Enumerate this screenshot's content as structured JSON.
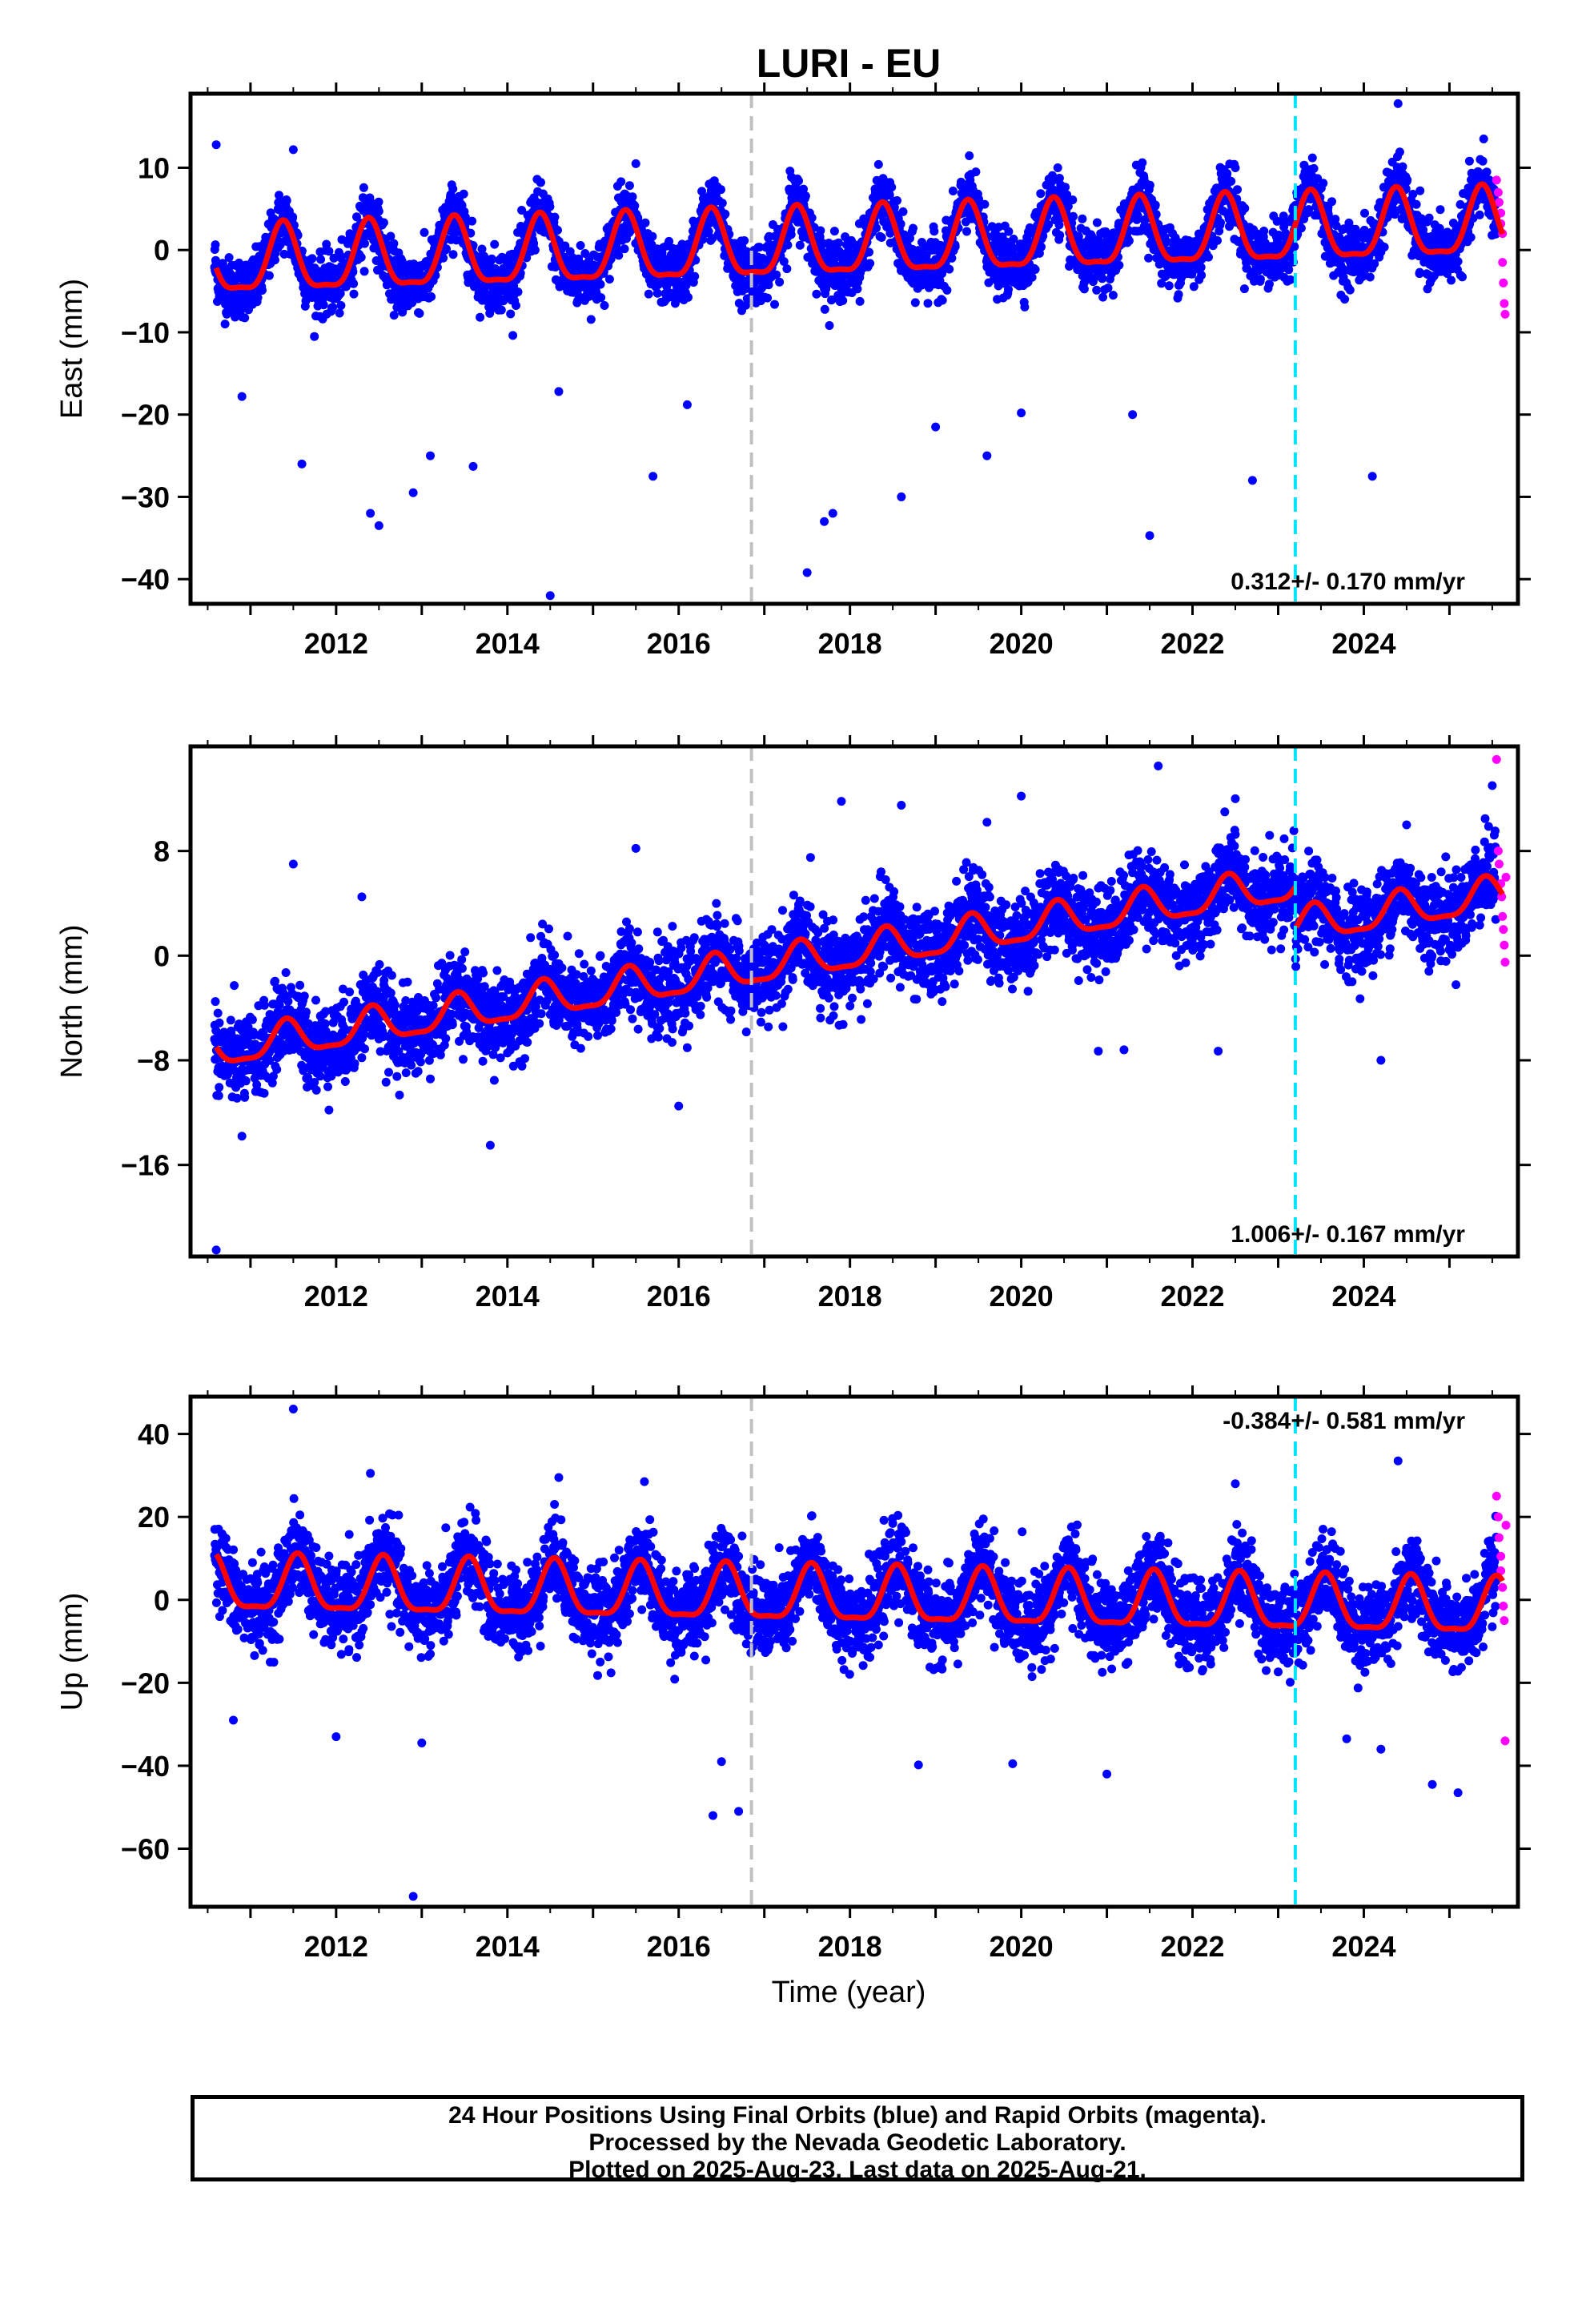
{
  "title": "LURI - EU",
  "x_axis_label": "Time (year)",
  "x_ticks": [
    "2012",
    "2014",
    "2016",
    "2018",
    "2020",
    "2022",
    "2024"
  ],
  "footer": {
    "line1": "24 Hour Positions Using Final Orbits (blue) and Rapid Orbits (magenta).",
    "line2": "Processed by the Nevada Geodetic Laboratory.",
    "line3": "Plotted on 2025-Aug-23. Last data on 2025-Aug-21."
  },
  "colors": {
    "final_orbits": "#0000ff",
    "rapid_orbits": "#ff00ff",
    "model_fit": "#ff0000",
    "event_line_gray": "#c0c0c0",
    "event_line_cyan": "#00e5ff"
  },
  "chart_data": [
    {
      "type": "scatter",
      "ylabel": "East (mm)",
      "xlim": [
        2010.3,
        2025.8
      ],
      "ylim": [
        -43,
        19
      ],
      "yticks": [
        10,
        0,
        -10,
        -20,
        -30,
        -40
      ],
      "rate": "0.312+/- 0.170 mm/yr",
      "rate_position": "bottom-right",
      "model": {
        "intercept": -1.8,
        "trend": 0.312,
        "annual_amplitude": 4.0,
        "phase_year": 0.38
      },
      "scatter_sigma": 1.8,
      "event_lines": [
        2016.85,
        2023.2
      ],
      "series": [
        {
          "values": [
            [
              2010.6,
              12.8
            ],
            [
              2011.5,
              12.2
            ],
            [
              2012.4,
              -32.0
            ],
            [
              2012.5,
              -33.5
            ],
            [
              2011.6,
              -26.0
            ],
            [
              2012.9,
              -29.5
            ],
            [
              2013.1,
              -25.0
            ],
            [
              2013.6,
              -26.3
            ],
            [
              2014.5,
              -42.0
            ],
            [
              2015.7,
              -27.5
            ],
            [
              2015.5,
              10.5
            ],
            [
              2017.5,
              -39.2
            ],
            [
              2017.7,
              -33.0
            ],
            [
              2017.8,
              -32.0
            ],
            [
              2017.3,
              9.6
            ],
            [
              2018.6,
              -30.0
            ],
            [
              2019.6,
              -25.0
            ],
            [
              2021.5,
              -34.7
            ],
            [
              2022.5,
              10.0
            ],
            [
              2022.7,
              -28.0
            ],
            [
              2023.4,
              11.2
            ],
            [
              2024.1,
              -27.5
            ],
            [
              2024.4,
              17.8
            ],
            [
              2025.4,
              13.5
            ],
            [
              2010.9,
              -17.8
            ],
            [
              2014.6,
              -17.2
            ],
            [
              2016.1,
              -18.8
            ],
            [
              2019.0,
              -21.5
            ],
            [
              2020.0,
              -19.8
            ],
            [
              2021.3,
              -20.0
            ]
          ]
        },
        {
          "name": "rapid",
          "values": [
            [
              2025.55,
              8.5
            ],
            [
              2025.57,
              7.0
            ],
            [
              2025.58,
              5.8
            ],
            [
              2025.6,
              4.5
            ],
            [
              2025.6,
              3.2
            ],
            [
              2025.62,
              2.0
            ],
            [
              2025.62,
              -1.5
            ],
            [
              2025.63,
              -4.0
            ],
            [
              2025.64,
              -6.5
            ],
            [
              2025.65,
              -7.8
            ]
          ]
        }
      ]
    },
    {
      "type": "scatter",
      "ylabel": "North (mm)",
      "xlim": [
        2010.3,
        2025.8
      ],
      "ylim": [
        -23,
        16
      ],
      "yticks": [
        8,
        0,
        -8,
        -16
      ],
      "rate": "1.006+/- 0.167 mm/yr",
      "rate_position": "bottom-right",
      "model": {
        "intercept": -7.3,
        "trend": 1.006,
        "annual_amplitude": 1.3,
        "phase_year": 0.42
      },
      "step": {
        "year": 2023.2,
        "offset": -3.2
      },
      "scatter_sigma": 1.6,
      "event_lines": [
        2016.85,
        2023.2
      ],
      "series": [
        {
          "values": [
            [
              2010.6,
              -22.5
            ],
            [
              2011.5,
              7.0
            ],
            [
              2013.8,
              -14.5
            ],
            [
              2015.5,
              8.2
            ],
            [
              2017.9,
              11.8
            ],
            [
              2018.6,
              11.5
            ],
            [
              2019.6,
              10.2
            ],
            [
              2020.0,
              12.2
            ],
            [
              2021.6,
              14.5
            ],
            [
              2022.5,
              12.0
            ],
            [
              2022.9,
              9.2
            ],
            [
              2024.5,
              10.0
            ],
            [
              2025.5,
              13.0
            ],
            [
              2022.3,
              -7.3
            ],
            [
              2024.2,
              -8.0
            ],
            [
              2020.9,
              -7.3
            ],
            [
              2021.2,
              -7.2
            ],
            [
              2010.9,
              -13.8
            ],
            [
              2016.0,
              -11.5
            ],
            [
              2012.3,
              4.5
            ]
          ]
        },
        {
          "name": "rapid",
          "values": [
            [
              2025.55,
              15.0
            ],
            [
              2025.57,
              8.0
            ],
            [
              2025.58,
              7.0
            ],
            [
              2025.6,
              5.5
            ],
            [
              2025.61,
              4.5
            ],
            [
              2025.62,
              3.0
            ],
            [
              2025.63,
              2.0
            ],
            [
              2025.64,
              0.8
            ],
            [
              2025.65,
              -0.5
            ],
            [
              2025.66,
              6.0
            ]
          ]
        }
      ]
    },
    {
      "type": "scatter",
      "ylabel": "Up (mm)",
      "xlim": [
        2010.3,
        2025.8
      ],
      "ylim": [
        -74,
        49
      ],
      "yticks": [
        40,
        20,
        0,
        -20,
        -40,
        -60
      ],
      "rate": "-0.384+/- 0.581 mm/yr",
      "rate_position": "top-right",
      "model": {
        "intercept": 3.2,
        "trend": -0.384,
        "annual_amplitude": 6.5,
        "phase_year": 0.55
      },
      "scatter_sigma": 5.0,
      "event_lines": [
        2016.85,
        2023.2
      ],
      "series": [
        {
          "values": [
            [
              2011.5,
              46.0
            ],
            [
              2012.9,
              -71.5
            ],
            [
              2016.4,
              -52.0
            ],
            [
              2016.7,
              -51.0
            ],
            [
              2016.5,
              -39.0
            ],
            [
              2012.4,
              30.5
            ],
            [
              2014.6,
              29.5
            ],
            [
              2015.6,
              28.5
            ],
            [
              2022.5,
              28.0
            ],
            [
              2024.4,
              33.5
            ],
            [
              2021.0,
              -42.0
            ],
            [
              2024.8,
              -44.5
            ],
            [
              2025.1,
              -46.5
            ],
            [
              2019.9,
              -39.5
            ],
            [
              2018.8,
              -39.8
            ],
            [
              2012.0,
              -33.0
            ],
            [
              2013.0,
              -34.5
            ],
            [
              2010.8,
              -29.0
            ],
            [
              2023.8,
              -33.5
            ],
            [
              2024.2,
              -36.0
            ]
          ]
        },
        {
          "name": "rapid",
          "values": [
            [
              2025.55,
              25.0
            ],
            [
              2025.57,
              20.0
            ],
            [
              2025.58,
              15.0
            ],
            [
              2025.6,
              10.5
            ],
            [
              2025.6,
              7.0
            ],
            [
              2025.62,
              3.0
            ],
            [
              2025.63,
              -1.5
            ],
            [
              2025.64,
              -5.0
            ],
            [
              2025.65,
              -34.0
            ],
            [
              2025.66,
              18.0
            ]
          ]
        }
      ]
    }
  ]
}
